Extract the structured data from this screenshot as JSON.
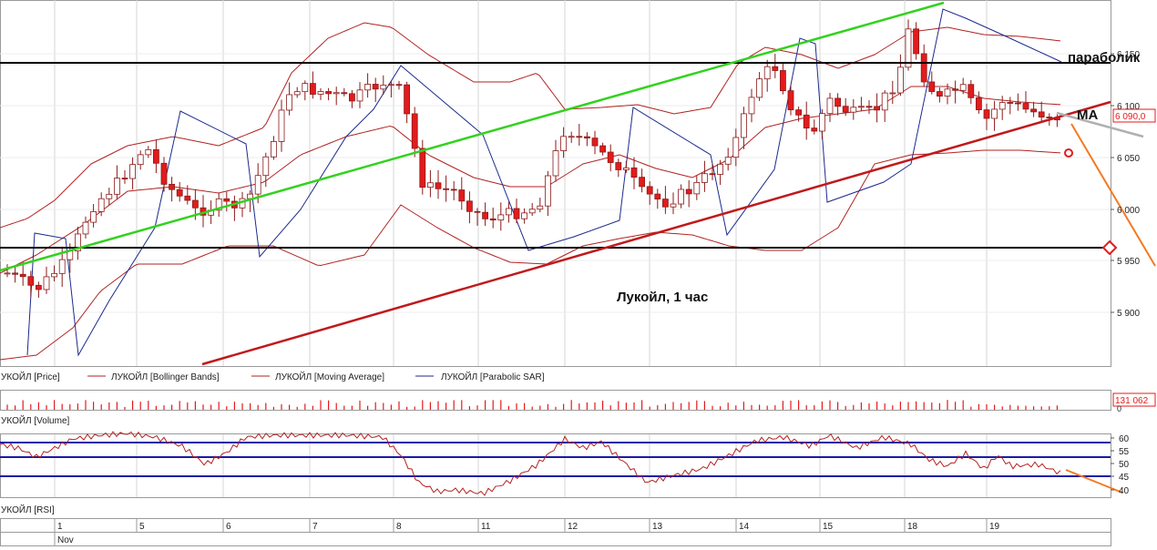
{
  "instrument": "ЛУКОЙЛ",
  "annotations": {
    "title": "Лукойл,  1 час",
    "parabolic": "параболик",
    "ma": "МА"
  },
  "price_panel": {
    "y_ticks": [
      "6 150",
      "6 100",
      "6 050",
      "6 000",
      "5 950",
      "5 900"
    ],
    "last_price": "6 090,0",
    "legend": [
      {
        "text": "УКОЙЛ [Price]",
        "marker": "none"
      },
      {
        "text": "ЛУКОЙЛ [Bollinger Bands]",
        "marker": "line",
        "color": "#b22222"
      },
      {
        "text": "ЛУКОЙЛ [Moving Average]",
        "marker": "line",
        "color": "#b22222"
      },
      {
        "text": "ЛУКОЙЛ [Parabolic SAR]",
        "marker": "line",
        "color": "#1c2a8c"
      }
    ]
  },
  "volume_panel": {
    "label": "УКОЙЛ [Volume]",
    "last_value": "131 062",
    "zero": "0"
  },
  "rsi_panel": {
    "label": "УКОЙЛ [RSI]",
    "y_ticks": [
      "60",
      "55",
      "50",
      "45",
      "40"
    ]
  },
  "x_axis": {
    "day_labels": [
      "1",
      "5",
      "6",
      "7",
      "8",
      "11",
      "12",
      "13",
      "14",
      "15",
      "18",
      "19"
    ],
    "month_label": "Nov"
  },
  "colors": {
    "candle": "#e31b1b",
    "band": "#b22222",
    "sar": "#1c2a8c",
    "support_line": "#c0191c",
    "channel_line": "#32d21e",
    "forecast": "#f27a22",
    "ma_ext": "#b0b0b0",
    "rsi_level": "#1a1aa8"
  },
  "chart_data": {
    "type": "candlestick",
    "timeframe": "1 час",
    "y_range": [
      5850,
      6200
    ],
    "horizontal_levels": [
      6140,
      5962
    ],
    "last_price": 6090,
    "volume_last": 131062,
    "rsi_levels": [
      57,
      52,
      45
    ],
    "rsi_range": [
      38,
      61
    ]
  }
}
